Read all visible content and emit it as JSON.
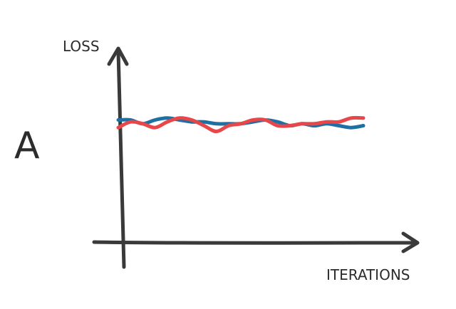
{
  "chart_data": {
    "type": "line",
    "panel_label": "A",
    "ylabel": "LOSS",
    "xlabel": "ITERATIONS",
    "title": "",
    "grid": false,
    "ylim": [
      0,
      1
    ],
    "xlim": [
      0,
      1
    ],
    "series": [
      {
        "color": "#1f6fa3",
        "x": [
          0.0,
          0.05,
          0.1,
          0.15,
          0.2,
          0.25,
          0.3,
          0.35,
          0.4,
          0.45,
          0.5,
          0.55,
          0.6,
          0.65,
          0.7,
          0.75,
          0.8,
          0.85,
          0.9,
          0.95,
          1.0
        ],
        "y": [
          0.64,
          0.64,
          0.62,
          0.64,
          0.65,
          0.64,
          0.63,
          0.63,
          0.62,
          0.62,
          0.62,
          0.63,
          0.64,
          0.63,
          0.61,
          0.62,
          0.61,
          0.62,
          0.61,
          0.6,
          0.61
        ]
      },
      {
        "color": "#e8474a",
        "x": [
          0.0,
          0.05,
          0.1,
          0.15,
          0.2,
          0.25,
          0.3,
          0.35,
          0.4,
          0.45,
          0.5,
          0.55,
          0.6,
          0.65,
          0.7,
          0.75,
          0.8,
          0.85,
          0.9,
          0.95,
          1.0
        ],
        "y": [
          0.6,
          0.63,
          0.62,
          0.6,
          0.63,
          0.65,
          0.64,
          0.61,
          0.58,
          0.61,
          0.62,
          0.64,
          0.64,
          0.61,
          0.61,
          0.62,
          0.62,
          0.63,
          0.63,
          0.65,
          0.65
        ]
      }
    ]
  },
  "colors": {
    "axis": "#3a3a3a",
    "text": "#2c2c2c",
    "background": "#ffffff"
  }
}
